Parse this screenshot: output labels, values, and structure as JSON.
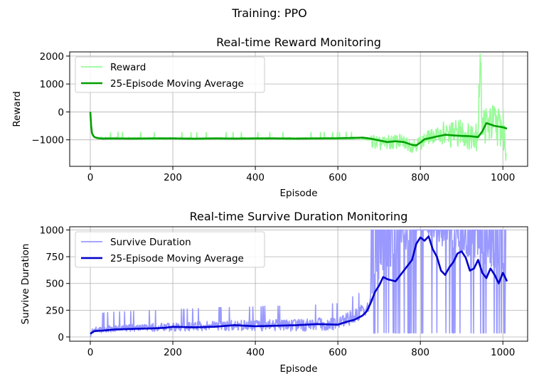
{
  "figure": {
    "suptitle": "Training: PPO"
  },
  "chart_data": [
    {
      "type": "line",
      "title": "Real-time Reward Monitoring",
      "xlabel": "Episode",
      "ylabel": "Reward",
      "xlim": [
        -50,
        1060
      ],
      "ylim": [
        -1950,
        2150
      ],
      "xticks": [
        0,
        200,
        400,
        600,
        800,
        1000
      ],
      "yticks": [
        -1000,
        0,
        1000,
        2000
      ],
      "ytick_labels": [
        "−1000",
        "0",
        "1000",
        "2000"
      ],
      "grid": true,
      "legend_position": "upper left",
      "series": [
        {
          "name": "Reward",
          "color": "#98fb98",
          "style": "raw",
          "x": [
            0,
            2,
            5,
            10,
            20,
            30,
            50,
            70,
            100,
            150,
            200,
            250,
            300,
            350,
            400,
            450,
            500,
            550,
            600,
            650,
            680,
            700,
            720,
            750,
            780,
            800,
            820,
            850,
            870,
            900,
            920,
            940,
            945,
            950,
            960,
            980,
            1000,
            1008
          ],
          "y": [
            0,
            -600,
            -850,
            -900,
            -950,
            -930,
            -960,
            -940,
            -950,
            -960,
            -950,
            -960,
            -955,
            -950,
            -960,
            -950,
            -955,
            -950,
            -950,
            -940,
            -1000,
            -1150,
            -1100,
            -1050,
            -1200,
            -1100,
            -900,
            -800,
            -850,
            -700,
            -900,
            -600,
            1950,
            -300,
            -500,
            -400,
            -600,
            -1300
          ]
        },
        {
          "name": "25-Episode Moving Average",
          "color": "#00a000",
          "style": "avg",
          "x": [
            0,
            2,
            4,
            6,
            8,
            10,
            15,
            20,
            30,
            50,
            100,
            150,
            200,
            250,
            300,
            350,
            400,
            450,
            500,
            550,
            600,
            640,
            660,
            680,
            700,
            720,
            740,
            760,
            780,
            790,
            800,
            810,
            820,
            840,
            860,
            880,
            900,
            920,
            940,
            950,
            960,
            980,
            1000,
            1010
          ],
          "y": [
            0,
            -500,
            -750,
            -820,
            -870,
            -900,
            -930,
            -945,
            -955,
            -950,
            -955,
            -950,
            -950,
            -960,
            -950,
            -955,
            -950,
            -950,
            -955,
            -950,
            -945,
            -930,
            -920,
            -960,
            -1020,
            -1080,
            -1050,
            -1080,
            -1180,
            -1200,
            -1100,
            -980,
            -950,
            -880,
            -820,
            -840,
            -860,
            -870,
            -900,
            -700,
            -400,
            -500,
            -550,
            -600
          ]
        }
      ]
    },
    {
      "type": "line",
      "title": "Real-time Survive Duration Monitoring",
      "xlabel": "Episode",
      "ylabel": "Survive Duration",
      "xlim": [
        -50,
        1060
      ],
      "ylim": [
        -40,
        1030
      ],
      "xticks": [
        0,
        200,
        400,
        600,
        800,
        1000
      ],
      "yticks": [
        0,
        250,
        500,
        750,
        1000
      ],
      "grid": true,
      "legend_position": "upper left",
      "series": [
        {
          "name": "Survive Duration",
          "color": "#9999ff",
          "style": "raw",
          "x": [
            0,
            5,
            20,
            50,
            100,
            150,
            200,
            250,
            300,
            350,
            400,
            450,
            500,
            550,
            600,
            620,
            650,
            680,
            700,
            720,
            750,
            780,
            800,
            850,
            900,
            950,
            1000,
            1008
          ],
          "y": [
            0,
            60,
            70,
            80,
            85,
            90,
            95,
            100,
            105,
            110,
            110,
            115,
            110,
            120,
            130,
            160,
            220,
            300,
            450,
            520,
            650,
            800,
            950,
            750,
            700,
            620,
            520,
            400
          ],
          "oscillation_start_x": 680
        },
        {
          "name": "25-Episode Moving Average",
          "color": "#0000cc",
          "style": "avg",
          "x": [
            0,
            10,
            30,
            60,
            100,
            150,
            180,
            200,
            250,
            300,
            350,
            400,
            450,
            500,
            550,
            600,
            620,
            640,
            660,
            670,
            680,
            690,
            700,
            710,
            720,
            740,
            760,
            780,
            790,
            800,
            810,
            820,
            830,
            840,
            850,
            860,
            870,
            880,
            890,
            900,
            910,
            920,
            930,
            940,
            950,
            960,
            970,
            980,
            990,
            1000,
            1010
          ],
          "y": [
            30,
            55,
            60,
            70,
            75,
            80,
            85,
            95,
            90,
            95,
            110,
            100,
            105,
            110,
            120,
            115,
            140,
            160,
            200,
            240,
            320,
            420,
            480,
            560,
            540,
            520,
            620,
            720,
            870,
            930,
            900,
            940,
            820,
            750,
            620,
            580,
            650,
            700,
            780,
            800,
            740,
            620,
            640,
            720,
            600,
            550,
            640,
            580,
            500,
            600,
            520
          ]
        }
      ]
    }
  ]
}
